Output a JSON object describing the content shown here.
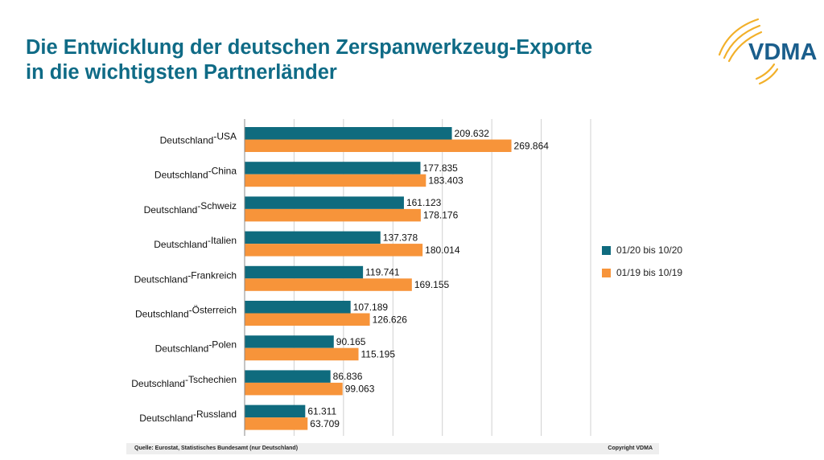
{
  "header": {
    "title_line1": "Die Entwicklung der deutschen Zerspanwerkzeug-Exporte",
    "title_line2": "in die wichtigsten Partnerländer",
    "logo_text": "VDMA"
  },
  "colors": {
    "title": "#0f6b86",
    "series_2020": "#0f6b7e",
    "series_2019": "#f7943a",
    "logo_blue": "#1a5e8c",
    "logo_gold": "#f2b02a"
  },
  "chart_data": {
    "type": "bar",
    "orientation": "horizontal",
    "categories": [
      {
        "base": "Deutschland",
        "sup": "-USA"
      },
      {
        "base": "Deutschland",
        "sup": "-China"
      },
      {
        "base": "Deutschland",
        "sup": "-Schweiz"
      },
      {
        "base": "Deutschland",
        "sup": "-Italien"
      },
      {
        "base": "Deutschland",
        "sup": "-Frankreich"
      },
      {
        "base": "Deutschland",
        "sup": "-Österreich"
      },
      {
        "base": "Deutschland",
        "sup": "-Polen"
      },
      {
        "base": "Deutschland",
        "sup": "-Tschechien"
      },
      {
        "base": "Deutschland",
        "sup": "-Russland"
      }
    ],
    "series": [
      {
        "name": "01/20 bis 10/20",
        "values": [
          209632,
          177835,
          161123,
          137378,
          119741,
          107189,
          90165,
          86836,
          61311
        ],
        "labels": [
          "209.632",
          "177.835",
          "161.123",
          "137.378",
          "119.741",
          "107.189",
          "90.165",
          "86.836",
          "61.311"
        ]
      },
      {
        "name": "01/19 bis 10/19",
        "values": [
          269864,
          183403,
          178176,
          180014,
          169155,
          126626,
          115195,
          99063,
          63709
        ],
        "labels": [
          "269.864",
          "183.403",
          "178.176",
          "180.014",
          "169.155",
          "126.626",
          "115.195",
          "99.063",
          "63.709"
        ]
      }
    ],
    "xlim": [
      0,
      350000
    ],
    "grid": true,
    "legend_position": "right"
  },
  "footer": {
    "source": "Quelle: Eurostat, Statistisches Bundesamt (nur Deutschland)",
    "copyright": "Copyright VDMA"
  }
}
